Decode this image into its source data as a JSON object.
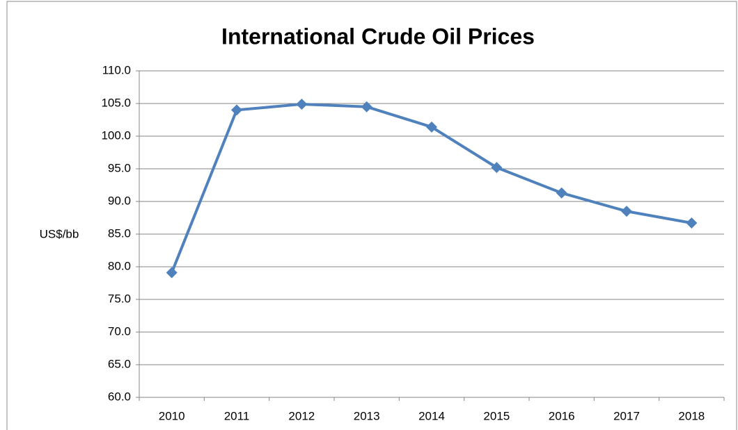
{
  "chart_data": {
    "type": "line",
    "title": "International Crude Oil Prices",
    "y_label": "US$/bb",
    "categories": [
      "2010",
      "2011",
      "2012",
      "2013",
      "2014",
      "2015",
      "2016",
      "2017",
      "2018"
    ],
    "series": [
      {
        "name": "International Crude Oil Prices",
        "color": "#4f81bd",
        "values": [
          79.1,
          104.0,
          104.9,
          104.5,
          101.4,
          95.2,
          91.3,
          88.5,
          86.7
        ]
      }
    ],
    "ylim": [
      60,
      110
    ],
    "yticks": [
      {
        "value": 60,
        "label": "60.0"
      },
      {
        "value": 65,
        "label": "65.0"
      },
      {
        "value": 70,
        "label": "70.0"
      },
      {
        "value": 75,
        "label": "75.0"
      },
      {
        "value": 80,
        "label": "80.0"
      },
      {
        "value": 85,
        "label": "85.0"
      },
      {
        "value": 90,
        "label": "90.0"
      },
      {
        "value": 95,
        "label": "95.0"
      },
      {
        "value": 100,
        "label": "100.0"
      },
      {
        "value": 105,
        "label": "105.0"
      },
      {
        "value": 110,
        "label": "110.0"
      }
    ],
    "grid": true
  }
}
